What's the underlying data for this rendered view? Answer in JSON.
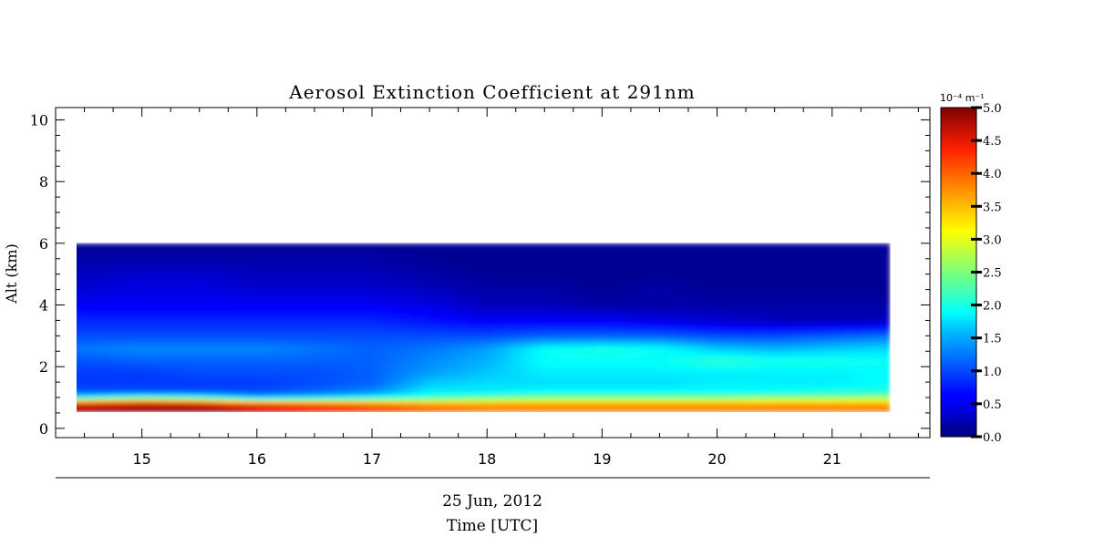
{
  "chart_data": {
    "type": "heatmap",
    "title": "Aerosol Extinction Coefficient at 291nm",
    "ylabel": "Alt (km)",
    "xlabel": "Time [UTC]",
    "date_label": "25 Jun, 2012",
    "x_range": [
      14.25,
      21.85
    ],
    "y_range": [
      -0.3,
      10.4
    ],
    "data_x_range": [
      14.3,
      21.5
    ],
    "data_y_range": [
      0.55,
      6.0
    ],
    "x_ticks": [
      "15",
      "16",
      "17",
      "18",
      "19",
      "20",
      "21"
    ],
    "y_ticks": [
      "0",
      "2",
      "4",
      "6",
      "8",
      "10"
    ],
    "colorbar": {
      "unit_label": "10⁻⁴ m⁻¹",
      "range": [
        0,
        5
      ],
      "ticks": [
        "0.0",
        "0.5",
        "1.0",
        "1.5",
        "2.0",
        "2.5",
        "3.0",
        "3.5",
        "4.0",
        "4.5",
        "5.0"
      ],
      "colormap": "jet"
    },
    "x": [
      14.3,
      15.0,
      15.5,
      16.0,
      16.5,
      17.0,
      17.5,
      18.0,
      18.5,
      19.0,
      19.5,
      20.0,
      20.5,
      21.0,
      21.5
    ],
    "y": [
      0.6,
      0.8,
      1.0,
      1.2,
      1.5,
      1.8,
      2.2,
      2.6,
      3.0,
      3.5,
      4.0,
      4.5,
      5.0,
      5.5,
      6.0
    ],
    "values": [
      [
        4.8,
        5.0,
        5.0,
        4.7,
        4.4,
        4.2,
        4.0,
        3.8,
        3.8,
        3.8,
        3.8,
        3.8,
        3.8,
        3.8,
        3.8
      ],
      [
        4.5,
        4.7,
        4.6,
        4.2,
        4.0,
        3.8,
        3.6,
        3.6,
        3.6,
        3.6,
        3.6,
        3.6,
        3.6,
        3.6,
        3.6
      ],
      [
        1.9,
        2.4,
        2.2,
        1.6,
        1.8,
        2.0,
        2.2,
        2.4,
        2.5,
        2.5,
        2.5,
        2.5,
        2.6,
        2.6,
        2.7
      ],
      [
        1.0,
        1.0,
        1.0,
        1.0,
        1.1,
        1.3,
        1.8,
        1.8,
        1.9,
        1.9,
        1.9,
        1.9,
        1.9,
        2.0,
        2.0
      ],
      [
        0.9,
        0.9,
        0.9,
        0.9,
        1.0,
        1.1,
        1.6,
        1.7,
        1.7,
        1.7,
        1.7,
        1.8,
        1.8,
        1.8,
        1.9
      ],
      [
        0.9,
        0.9,
        1.0,
        1.0,
        1.0,
        1.1,
        1.4,
        1.6,
        1.8,
        1.8,
        1.8,
        1.8,
        1.8,
        1.8,
        1.9
      ],
      [
        1.0,
        1.1,
        1.1,
        1.1,
        1.1,
        1.1,
        1.3,
        1.5,
        1.9,
        1.9,
        1.9,
        2.1,
        2.0,
        2.0,
        1.9
      ],
      [
        1.2,
        1.3,
        1.3,
        1.3,
        1.2,
        1.1,
        1.2,
        1.4,
        1.9,
        2.0,
        1.9,
        1.6,
        1.5,
        1.6,
        1.7
      ],
      [
        1.0,
        1.0,
        1.0,
        1.0,
        1.0,
        1.0,
        1.0,
        1.0,
        1.1,
        1.1,
        1.1,
        1.0,
        1.0,
        1.1,
        1.2
      ],
      [
        0.8,
        0.8,
        0.8,
        0.8,
        0.8,
        0.8,
        0.7,
        0.6,
        0.6,
        0.6,
        0.5,
        0.4,
        0.3,
        0.3,
        0.3
      ],
      [
        0.6,
        0.6,
        0.6,
        0.6,
        0.6,
        0.6,
        0.5,
        0.3,
        0.3,
        0.2,
        0.2,
        0.2,
        0.2,
        0.2,
        0.2
      ],
      [
        0.4,
        0.5,
        0.5,
        0.4,
        0.4,
        0.4,
        0.3,
        0.2,
        0.2,
        0.1,
        0.2,
        0.1,
        0.1,
        0.1,
        0.1
      ],
      [
        0.3,
        0.4,
        0.4,
        0.3,
        0.3,
        0.3,
        0.2,
        0.1,
        0.1,
        0.1,
        0.1,
        0.1,
        0.1,
        0.1,
        0.1
      ],
      [
        0.2,
        0.2,
        0.2,
        0.2,
        0.2,
        0.2,
        0.1,
        0.1,
        0.1,
        0.1,
        0.1,
        0.1,
        0.1,
        0.1,
        0.1
      ],
      [
        0.1,
        0.1,
        0.1,
        0.1,
        0.1,
        0.1,
        0.1,
        0.1,
        0.1,
        0.1,
        0.1,
        0.1,
        0.1,
        0.1,
        0.1
      ]
    ]
  }
}
